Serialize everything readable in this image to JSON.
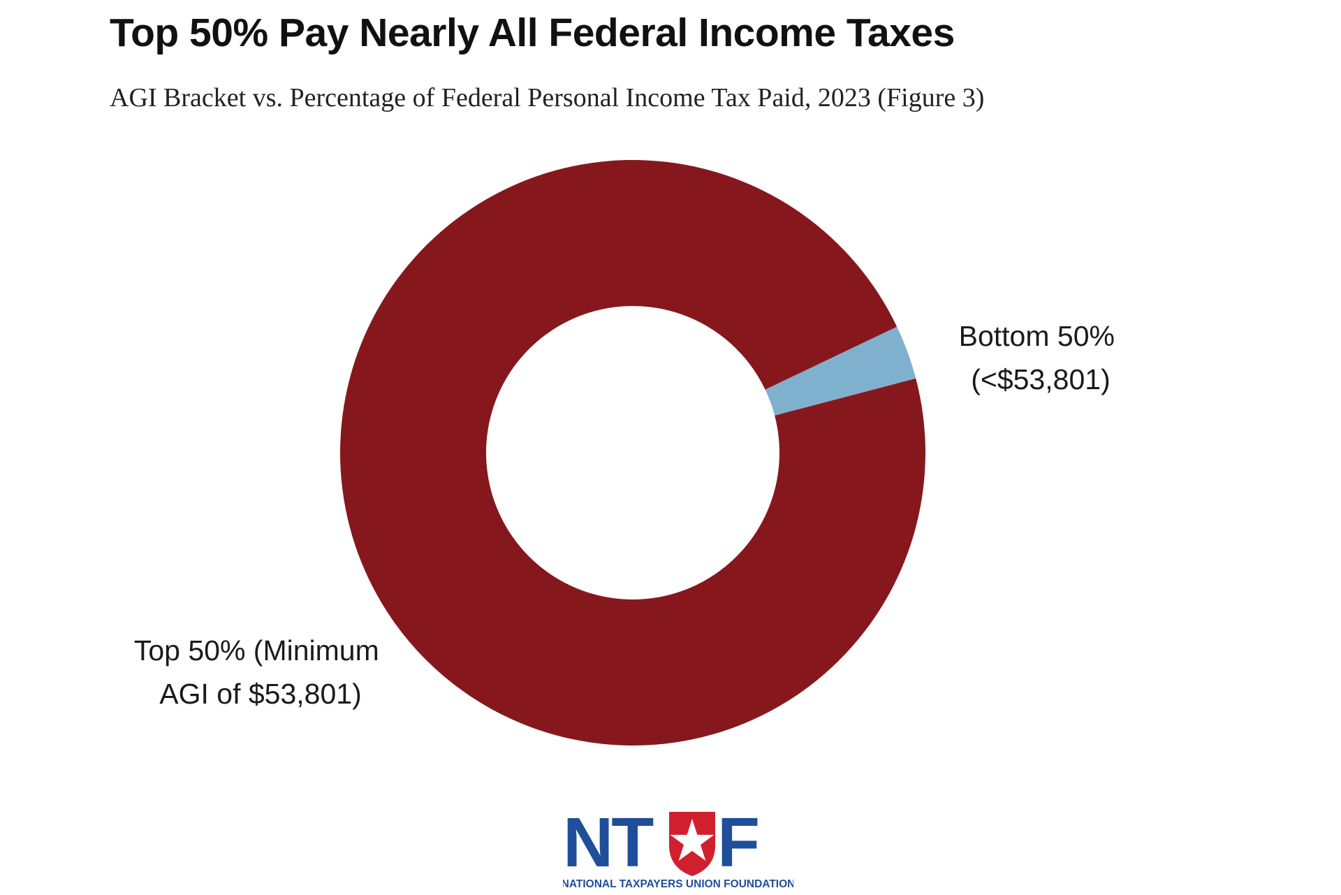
{
  "title": "Top 50% Pay Nearly All Federal Income Taxes",
  "subtitle": "AGI Bracket vs. Percentage of Federal Personal Income Tax Paid, 2023 (Figure 3)",
  "chart_data": {
    "type": "pie",
    "donut": true,
    "title": "Top 50% Pay Nearly All Federal Income Taxes",
    "subtitle": "AGI Bracket vs. Percentage of Federal Personal Income Tax Paid, 2023 (Figure 3)",
    "legend": "none",
    "slices": [
      {
        "label_lines": [
          "Bottom 50%",
          "(<$53,801)"
        ],
        "value": 3,
        "color": "#7FB1CE"
      },
      {
        "label_lines": [
          "Top 50% (Minimum",
          "AGI of $53,801)"
        ],
        "value": 97,
        "color": "#86181D"
      }
    ]
  },
  "logo": {
    "letters": [
      "N",
      "T",
      "U",
      "F"
    ],
    "tagline": "NATIONAL TAXPAYERS UNION FOUNDATION",
    "colors": {
      "blue": "#1F4E9A",
      "red": "#D0202E",
      "white": "#FFFFFF"
    }
  }
}
